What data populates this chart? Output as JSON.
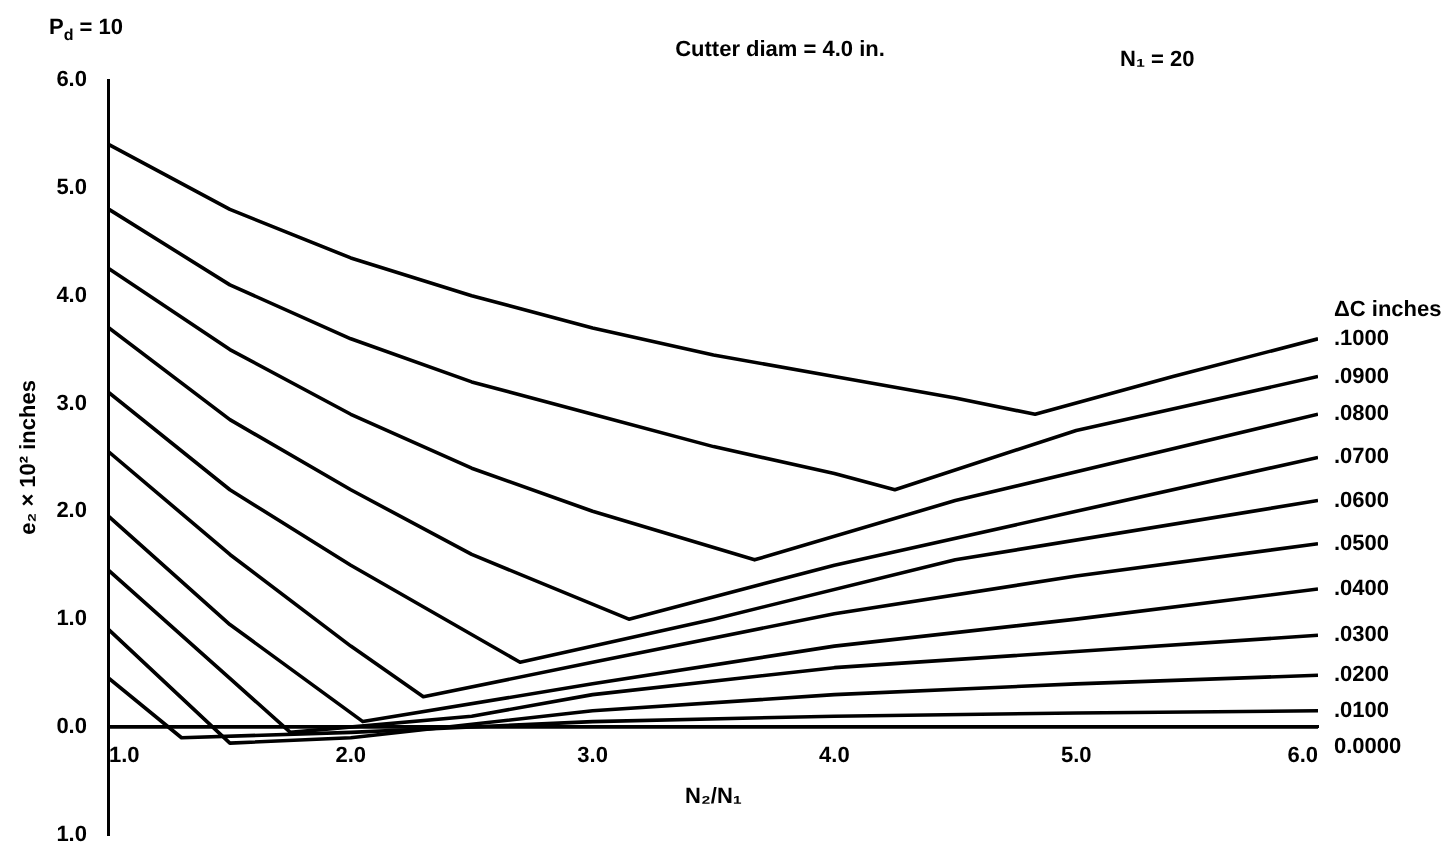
{
  "chart_data": {
    "type": "line",
    "title": "Cutter diam = 4.0 in.",
    "xlabel": "N₂/N₁",
    "ylabel": "e₂ × 10² inches",
    "legend_title": "ΔC inches",
    "annotations": [
      "P$_{d}$ = 10",
      "N₁ = 20"
    ],
    "xlim": [
      1,
      6
    ],
    "ylim": [
      -1,
      6
    ],
    "xticks": [
      {
        "value": 1,
        "label": "1.0"
      },
      {
        "value": 2,
        "label": "2.0"
      },
      {
        "value": 3,
        "label": "3.0"
      },
      {
        "value": 4,
        "label": "4.0"
      },
      {
        "value": 5,
        "label": "5.0"
      },
      {
        "value": 6,
        "label": "6.0"
      }
    ],
    "yticks": [
      {
        "value": -1,
        "label": "1.0"
      },
      {
        "value": 0,
        "label": "0.0"
      },
      {
        "value": 1,
        "label": "1.0"
      },
      {
        "value": 2,
        "label": "2.0"
      },
      {
        "value": 3,
        "label": "3.0"
      },
      {
        "value": 4,
        "label": "4.0"
      },
      {
        "value": 5,
        "label": "5.0"
      },
      {
        "value": 6,
        "label": "6.0"
      }
    ],
    "grid": false,
    "legend": false,
    "marker": "none",
    "line_style": "solid",
    "series": [
      {
        "name": ".1000",
        "color": "#000000",
        "x": [
          1,
          1.5,
          2,
          2.5,
          3,
          3.5,
          4,
          4.5,
          4.83,
          5.4,
          6
        ],
        "values": [
          5.4,
          4.8,
          4.35,
          4.0,
          3.7,
          3.45,
          3.25,
          3.05,
          2.9,
          3.25,
          3.6
        ]
      },
      {
        "name": ".0900",
        "color": "#000000",
        "x": [
          1,
          1.5,
          2,
          2.5,
          3,
          3.5,
          4,
          4.25,
          5,
          6
        ],
        "values": [
          4.8,
          4.1,
          3.6,
          3.2,
          2.9,
          2.6,
          2.35,
          2.2,
          2.75,
          3.25
        ]
      },
      {
        "name": ".0800",
        "color": "#000000",
        "x": [
          1,
          1.5,
          2,
          2.5,
          3,
          3.67,
          4.5,
          6
        ],
        "values": [
          4.25,
          3.5,
          2.9,
          2.4,
          2.0,
          1.55,
          2.1,
          2.9
        ]
      },
      {
        "name": ".0700",
        "color": "#000000",
        "x": [
          1,
          1.5,
          2,
          2.5,
          3.15,
          4,
          5,
          6
        ],
        "values": [
          3.7,
          2.85,
          2.2,
          1.6,
          1.0,
          1.5,
          2.0,
          2.5
        ]
      },
      {
        "name": ".0600",
        "color": "#000000",
        "x": [
          1,
          1.5,
          2,
          2.7,
          3.5,
          4.5,
          6
        ],
        "values": [
          3.1,
          2.2,
          1.5,
          0.6,
          1.0,
          1.55,
          2.1
        ]
      },
      {
        "name": ".0500",
        "color": "#000000",
        "x": [
          1,
          1.5,
          2,
          2.3,
          3,
          4,
          5,
          6
        ],
        "values": [
          2.55,
          1.6,
          0.75,
          0.28,
          0.6,
          1.05,
          1.4,
          1.7
        ]
      },
      {
        "name": ".0400",
        "color": "#000000",
        "x": [
          1,
          1.5,
          2.05,
          3,
          4,
          5,
          6
        ],
        "values": [
          1.95,
          0.95,
          0.05,
          0.4,
          0.75,
          1.0,
          1.28
        ]
      },
      {
        "name": ".0300",
        "color": "#000000",
        "x": [
          1,
          1.5,
          1.75,
          2.5,
          3,
          4,
          5,
          6
        ],
        "values": [
          1.45,
          0.45,
          -0.05,
          0.1,
          0.3,
          0.55,
          0.7,
          0.85
        ]
      },
      {
        "name": ".0200",
        "color": "#000000",
        "x": [
          1,
          1.5,
          2,
          3,
          4,
          5,
          6
        ],
        "values": [
          0.9,
          -0.15,
          -0.1,
          0.15,
          0.3,
          0.4,
          0.48
        ]
      },
      {
        "name": ".0100",
        "color": "#000000",
        "x": [
          1,
          1.3,
          2,
          3,
          4,
          5,
          6
        ],
        "values": [
          0.45,
          -0.1,
          -0.05,
          0.05,
          0.1,
          0.13,
          0.15
        ]
      },
      {
        "name": "0.0000",
        "color": "#000000",
        "x": [
          1,
          6
        ],
        "values": [
          0,
          0
        ]
      }
    ]
  }
}
